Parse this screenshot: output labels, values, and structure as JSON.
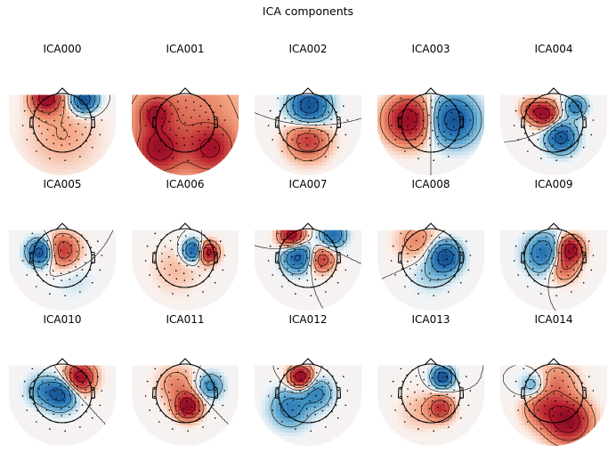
{
  "figure": {
    "title": "ICA components"
  },
  "chart_data": {
    "type": "heatmap",
    "subtype": "eeg-scalp-topomap-grid",
    "title": "ICA components",
    "rows": 3,
    "cols": 5,
    "colormap": "RdBu_r",
    "value_range": [
      -1,
      1
    ],
    "sensor_count_per_map": 64,
    "components": [
      {
        "name": "ICA000",
        "sources": [
          {
            "x": -0.55,
            "y": 0.85,
            "s": 0.35,
            "a": 0.9
          },
          {
            "x": 0.75,
            "y": 0.8,
            "s": 0.3,
            "a": -1.0
          },
          {
            "x": 0.0,
            "y": -0.4,
            "s": 0.9,
            "a": 0.2
          }
        ]
      },
      {
        "name": "ICA001",
        "sources": [
          {
            "x": 0.0,
            "y": 0.0,
            "s": 1.6,
            "a": 0.35
          },
          {
            "x": -0.9,
            "y": -0.9,
            "s": 0.5,
            "a": 0.7
          },
          {
            "x": 0.9,
            "y": -0.9,
            "s": 0.5,
            "a": 0.6
          },
          {
            "x": -1.0,
            "y": 0.3,
            "s": 0.35,
            "a": 0.6
          }
        ]
      },
      {
        "name": "ICA002",
        "sources": [
          {
            "x": 0.05,
            "y": 0.55,
            "s": 0.45,
            "a": -1.0
          },
          {
            "x": 0.0,
            "y": -0.55,
            "s": 0.5,
            "a": 0.6
          }
        ]
      },
      {
        "name": "ICA003",
        "sources": [
          {
            "x": -0.75,
            "y": 0.1,
            "s": 0.55,
            "a": 0.95
          },
          {
            "x": 0.75,
            "y": 0.1,
            "s": 0.55,
            "a": -0.95
          }
        ]
      },
      {
        "name": "ICA004",
        "sources": [
          {
            "x": -0.3,
            "y": 0.3,
            "s": 0.3,
            "a": 0.9
          },
          {
            "x": 0.25,
            "y": -0.5,
            "s": 0.35,
            "a": -0.9
          },
          {
            "x": 0.75,
            "y": 0.55,
            "s": 0.25,
            "a": -0.6
          },
          {
            "x": -0.8,
            "y": 0.45,
            "s": 0.25,
            "a": 0.4
          }
        ]
      },
      {
        "name": "ICA005",
        "sources": [
          {
            "x": -0.75,
            "y": 0.2,
            "s": 0.3,
            "a": -0.95
          },
          {
            "x": 0.0,
            "y": 0.25,
            "s": 0.4,
            "a": 0.6
          },
          {
            "x": 0.4,
            "y": -0.7,
            "s": 0.5,
            "a": -0.1
          }
        ]
      },
      {
        "name": "ICA006",
        "sources": [
          {
            "x": 0.3,
            "y": 0.25,
            "s": 0.25,
            "a": -0.95
          },
          {
            "x": 0.75,
            "y": 0.2,
            "s": 0.25,
            "a": 0.95
          },
          {
            "x": -0.3,
            "y": -0.4,
            "s": 0.6,
            "a": 0.15
          }
        ]
      },
      {
        "name": "ICA007",
        "sources": [
          {
            "x": -0.55,
            "y": 0.75,
            "s": 0.3,
            "a": 0.95
          },
          {
            "x": -0.35,
            "y": 0.05,
            "s": 0.35,
            "a": -0.85
          },
          {
            "x": 0.45,
            "y": -0.05,
            "s": 0.3,
            "a": 0.6
          },
          {
            "x": 0.85,
            "y": 0.8,
            "s": 0.3,
            "a": -0.7
          }
        ]
      },
      {
        "name": "ICA008",
        "sources": [
          {
            "x": -0.45,
            "y": 0.55,
            "s": 0.5,
            "a": 0.3
          },
          {
            "x": 0.5,
            "y": 0.05,
            "s": 0.35,
            "a": -0.95
          },
          {
            "x": 0.0,
            "y": -0.45,
            "s": 0.5,
            "a": -0.2
          }
        ]
      },
      {
        "name": "ICA009",
        "sources": [
          {
            "x": -0.3,
            "y": 0.15,
            "s": 0.45,
            "a": -0.7
          },
          {
            "x": 0.55,
            "y": 0.3,
            "s": 0.3,
            "a": 1.0
          },
          {
            "x": 0.3,
            "y": -0.3,
            "s": 0.35,
            "a": 0.5
          }
        ]
      },
      {
        "name": "ICA010",
        "sources": [
          {
            "x": -0.05,
            "y": -0.05,
            "s": 0.35,
            "a": -0.85
          },
          {
            "x": 0.6,
            "y": 0.55,
            "s": 0.35,
            "a": 0.9
          },
          {
            "x": -0.7,
            "y": 0.1,
            "s": 0.35,
            "a": -0.4
          }
        ]
      },
      {
        "name": "ICA011",
        "sources": [
          {
            "x": 0.1,
            "y": -0.45,
            "s": 0.3,
            "a": 1.0
          },
          {
            "x": -0.3,
            "y": 0.3,
            "s": 0.45,
            "a": 0.3
          },
          {
            "x": 0.85,
            "y": 0.25,
            "s": 0.3,
            "a": -0.5
          }
        ]
      },
      {
        "name": "ICA012",
        "sources": [
          {
            "x": -0.25,
            "y": 0.55,
            "s": 0.28,
            "a": 1.0
          },
          {
            "x": 0.3,
            "y": 0.0,
            "s": 0.35,
            "a": -0.5
          },
          {
            "x": -0.6,
            "y": -0.5,
            "s": 0.45,
            "a": -0.55
          }
        ]
      },
      {
        "name": "ICA013",
        "sources": [
          {
            "x": 0.4,
            "y": 0.55,
            "s": 0.25,
            "a": -0.95
          },
          {
            "x": 0.35,
            "y": -0.5,
            "s": 0.3,
            "a": 0.6
          },
          {
            "x": -0.4,
            "y": -0.6,
            "s": 0.5,
            "a": 0.15
          }
        ]
      },
      {
        "name": "ICA014",
        "sources": [
          {
            "x": 0.5,
            "y": -0.95,
            "s": 0.5,
            "a": 1.0
          },
          {
            "x": -0.7,
            "y": 0.25,
            "s": 0.3,
            "a": -0.4
          },
          {
            "x": 0.1,
            "y": 0.4,
            "s": 0.5,
            "a": 0.3
          },
          {
            "x": -0.4,
            "y": -0.5,
            "s": 0.45,
            "a": 0.45
          }
        ]
      }
    ]
  }
}
